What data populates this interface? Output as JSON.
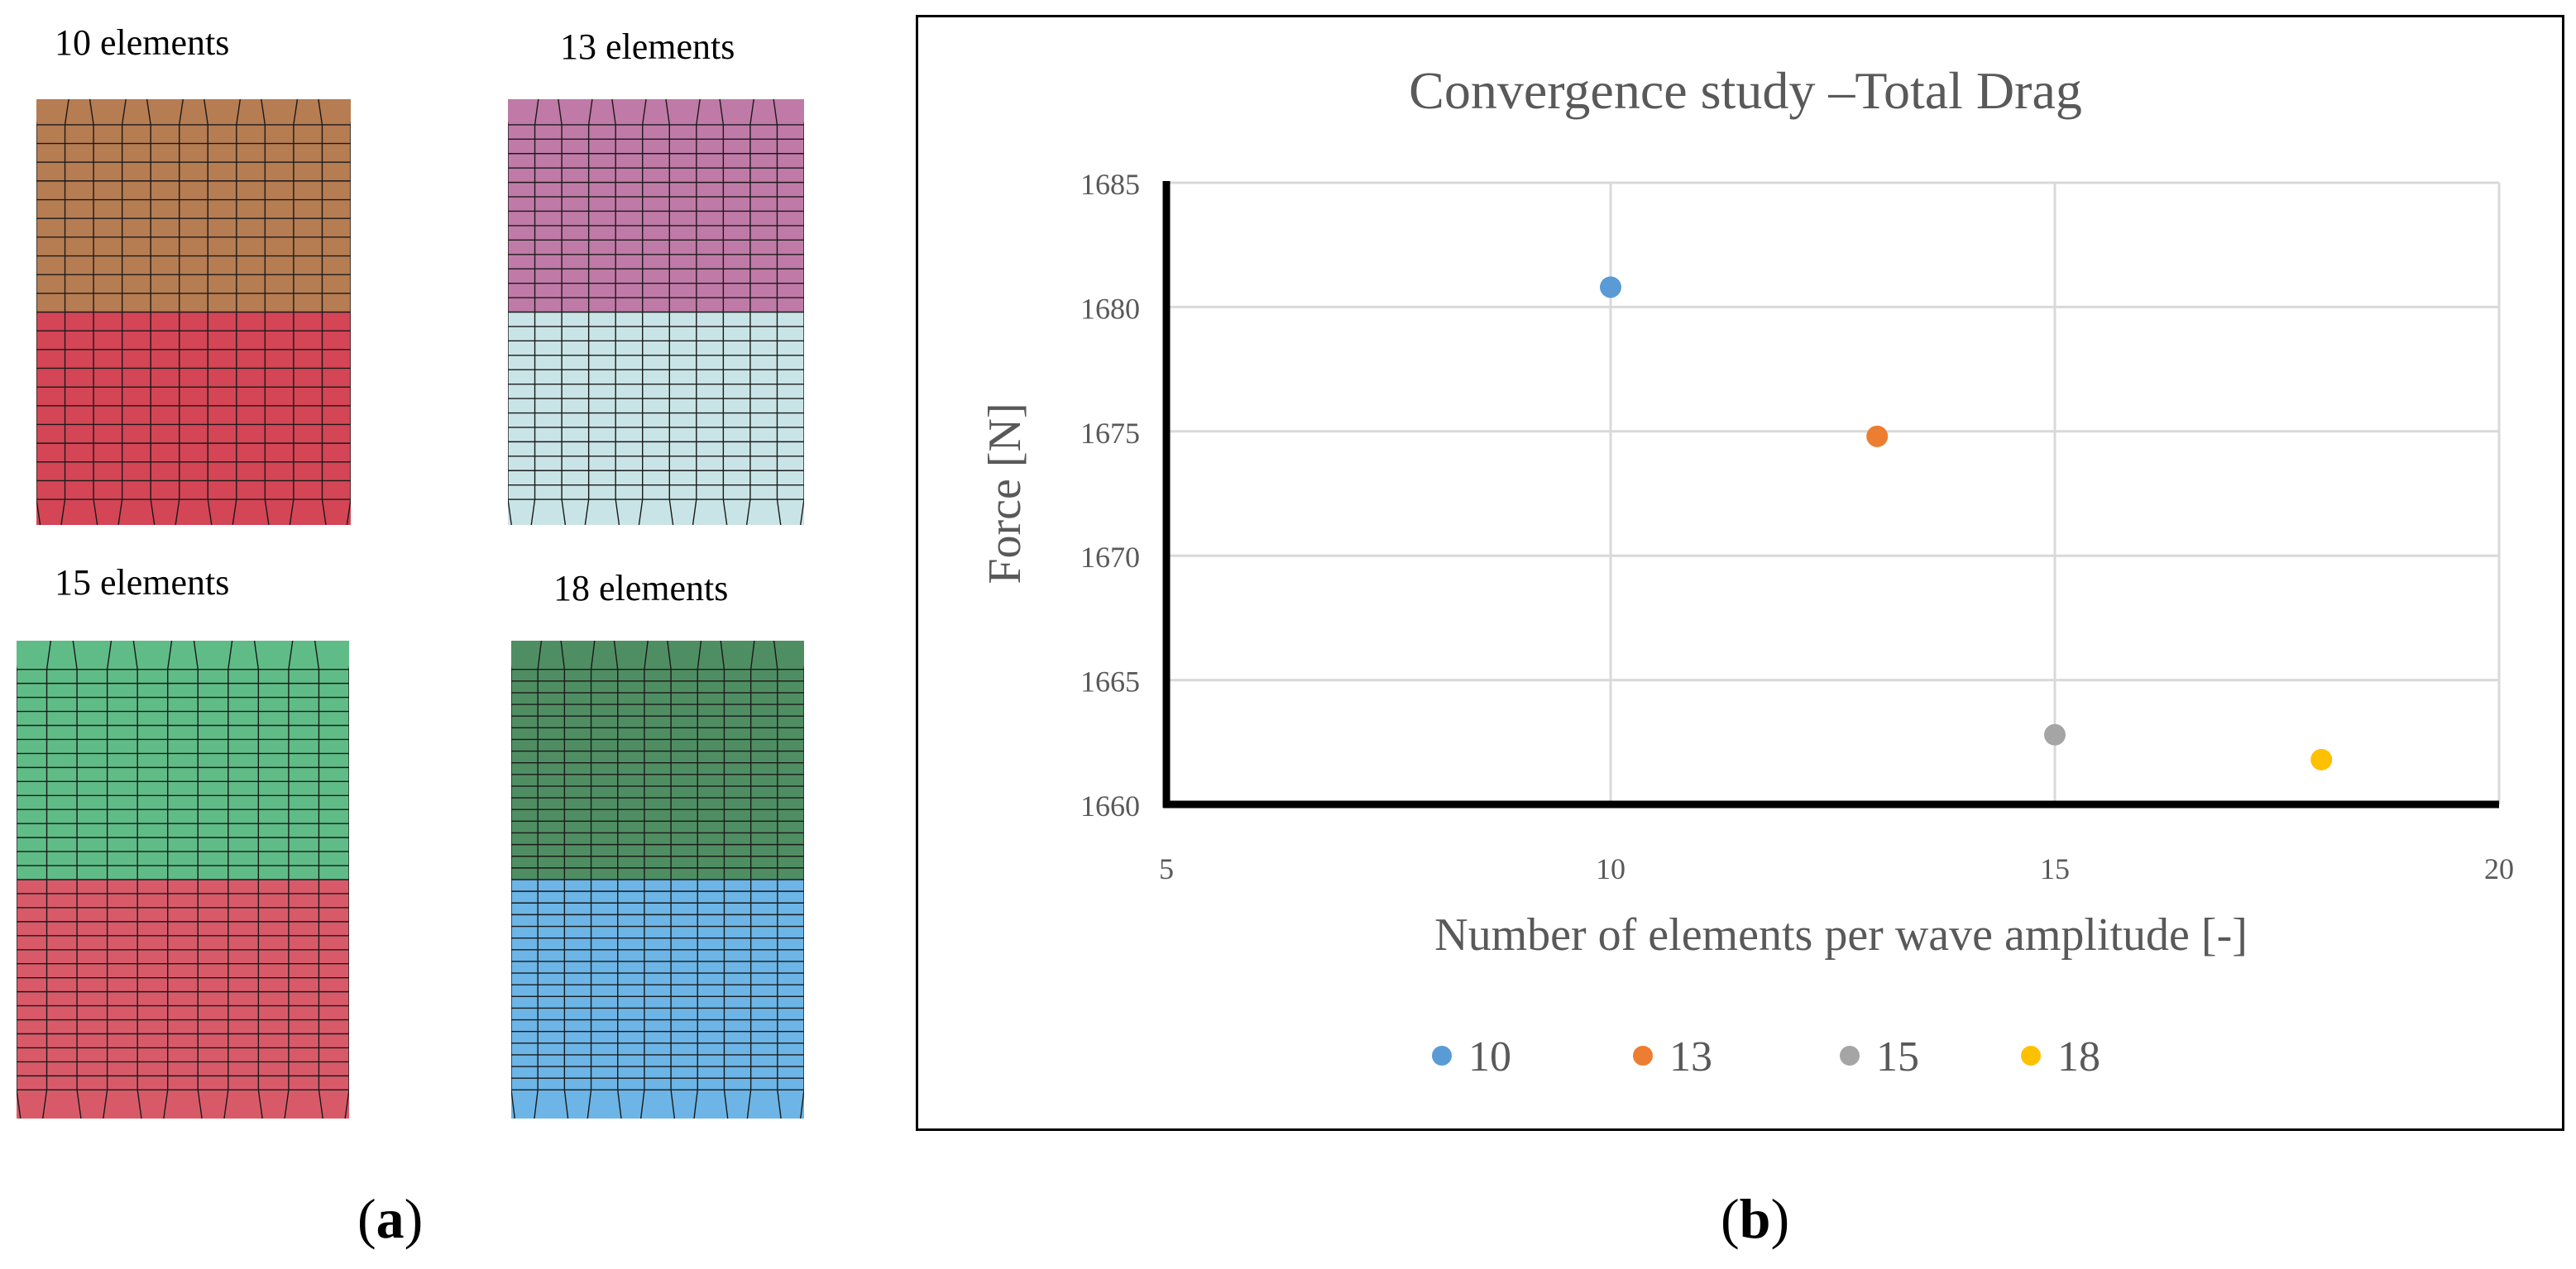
{
  "panel_a": {
    "label_open": "(",
    "label_letter": "a",
    "label_close": ")",
    "meshes": [
      {
        "label": "10 elements",
        "top_color": "#b67c52",
        "bottom_color": "#d44556",
        "rows": 10
      },
      {
        "label": "13 elements",
        "top_color": "#c07aa7",
        "bottom_color": "#c9e4e6",
        "rows": 13
      },
      {
        "label": "15 elements",
        "top_color": "#5fbc87",
        "bottom_color": "#d85a69",
        "rows": 15
      },
      {
        "label": "18 elements",
        "top_color": "#4f8e62",
        "bottom_color": "#6cb5e6",
        "rows": 18
      }
    ]
  },
  "panel_b": {
    "label_open": "(",
    "label_letter": "b",
    "label_close": ")"
  },
  "chart_data": {
    "type": "scatter",
    "title": "Convergence study –Total Drag",
    "xlabel": "Number of elements per wave amplitude [-]",
    "ylabel": "Force [N]",
    "xlim": [
      5,
      20
    ],
    "ylim": [
      1660,
      1685
    ],
    "xticks": [
      5,
      10,
      15,
      20
    ],
    "yticks": [
      1660,
      1665,
      1670,
      1675,
      1680,
      1685
    ],
    "grid": true,
    "legend_position": "bottom",
    "series": [
      {
        "name": "10",
        "x": 10,
        "y": 1680.8,
        "color": "#5b9bd5"
      },
      {
        "name": "13",
        "x": 13,
        "y": 1674.8,
        "color": "#ed7d31"
      },
      {
        "name": "15",
        "x": 15,
        "y": 1662.8,
        "color": "#a5a5a5"
      },
      {
        "name": "18",
        "x": 18,
        "y": 1661.8,
        "color": "#ffc000"
      }
    ]
  }
}
